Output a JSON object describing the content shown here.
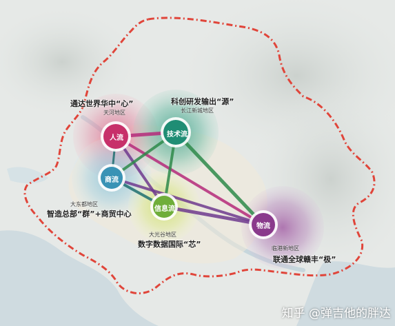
{
  "flow_nodes": [
    {
      "id": "people",
      "label": "人流",
      "color": "#c7306a"
    },
    {
      "id": "tech",
      "label": "技术流",
      "color": "#1f8d74"
    },
    {
      "id": "commerce",
      "label": "商流",
      "color": "#3a93b5"
    },
    {
      "id": "info",
      "label": "信息流",
      "color": "#6fae3a"
    },
    {
      "id": "logistics",
      "label": "物流",
      "color": "#8a3a8c"
    }
  ],
  "area_titles": {
    "people": "通达世界华中“心”",
    "tech": "科创研发输出“源”",
    "commerce": "智造总部“群”+商贸中心",
    "info": "数字数据国际“芯”",
    "logistics": "联通全球赣丰“极”"
  },
  "area_names": {
    "people": "天河地区",
    "tech": "长江新城地区",
    "commerce": "大东都地区",
    "info": "大光谷地区",
    "logistics": "临港新地区"
  },
  "colors": {
    "boundary": "#e0453a",
    "link_magenta": "#b52a7a",
    "link_purple": "#6e3a8e",
    "link_green": "#2e8a4a",
    "link_teal": "#1f6f70"
  },
  "watermark": "知乎 @弹吉他的胖达"
}
